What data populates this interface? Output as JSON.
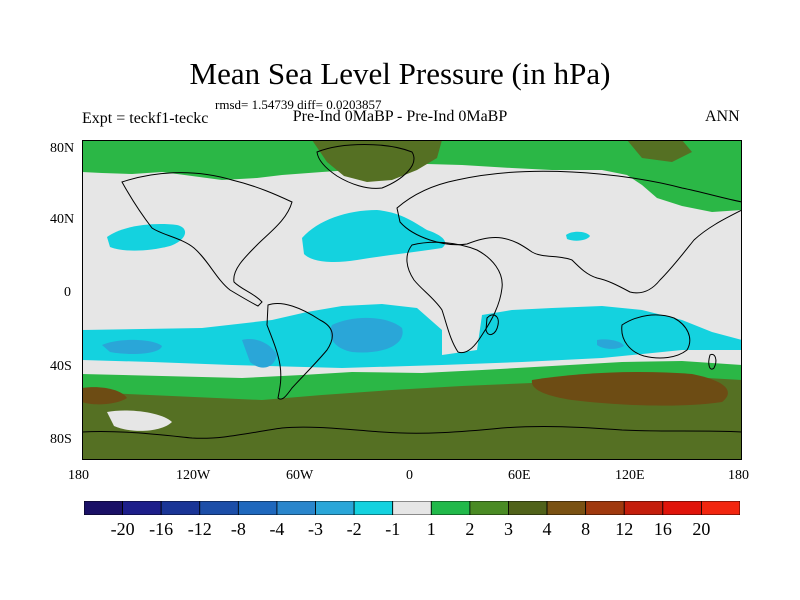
{
  "title": "Mean Sea Level Pressure (in hPa)",
  "stats": "rmsd= 1.54739 diff= 0.0203857",
  "left_label": "Expt = teckf1-teckc",
  "center_label": "Pre-Ind 0MaBP - Pre-Ind 0MaBP",
  "right_label": "ANN",
  "lat_labels": [
    "80N",
    "40N",
    "0",
    "40S",
    "80S"
  ],
  "lon_labels": [
    "180",
    "120W",
    "60W",
    "0",
    "60E",
    "120E",
    "180"
  ],
  "colorbar": {
    "levels": [
      "-20",
      "-16",
      "-12",
      "-8",
      "-4",
      "-3",
      "-2",
      "-1",
      "1",
      "2",
      "3",
      "4",
      "8",
      "12",
      "16",
      "20"
    ],
    "colors": [
      "#1a1066",
      "#1d1e8a",
      "#1a3596",
      "#1c4ea8",
      "#1f68bd",
      "#2a86cc",
      "#2aa6d8",
      "#14d2df",
      "#e6e6e6",
      "#21b94a",
      "#4a8b24",
      "#50621a",
      "#7a5213",
      "#a0390e",
      "#c41e0c",
      "#e0140a",
      "#f2260f"
    ]
  },
  "colors": {
    "green": "#2bb746",
    "dark_green": "#557023",
    "olive": "#5e5a14",
    "brown": "#6d4c14",
    "neutral": "#e6e6e6",
    "cyan": "#14d2df",
    "light_blue": "#2aa6d8",
    "blue": "#1f68bd"
  }
}
